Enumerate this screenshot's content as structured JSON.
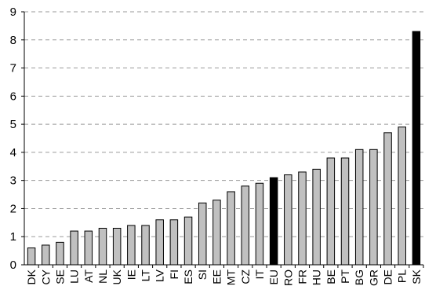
{
  "chart_data": {
    "type": "bar",
    "title": "",
    "xlabel": "",
    "ylabel": "",
    "ylim": [
      0,
      9
    ],
    "yticks": [
      "0",
      "1",
      "2",
      "3",
      "4",
      "5",
      "6",
      "7",
      "8",
      "9"
    ],
    "grid": "horizontal dashed",
    "categories": [
      "DK",
      "CY",
      "SE",
      "LU",
      "AT",
      "NL",
      "UK",
      "IE",
      "LT",
      "LV",
      "FI",
      "ES",
      "SI",
      "EE",
      "MT",
      "CZ",
      "IT",
      "EU",
      "RO",
      "FR",
      "HU",
      "BE",
      "PT",
      "BG",
      "GR",
      "DE",
      "PL",
      "SK"
    ],
    "values": [
      0.6,
      0.7,
      0.8,
      1.2,
      1.2,
      1.3,
      1.3,
      1.4,
      1.4,
      1.6,
      1.6,
      1.7,
      2.2,
      2.3,
      2.6,
      2.8,
      2.9,
      3.1,
      3.2,
      3.3,
      3.4,
      3.8,
      3.8,
      4.1,
      4.1,
      4.7,
      4.9,
      8.3
    ],
    "highlight": [
      "EU",
      "SK"
    ],
    "colors": {
      "bar": "#c0c0c0",
      "highlight": "#000000",
      "grid": "#9a9a9a",
      "axis": "#000000"
    }
  }
}
